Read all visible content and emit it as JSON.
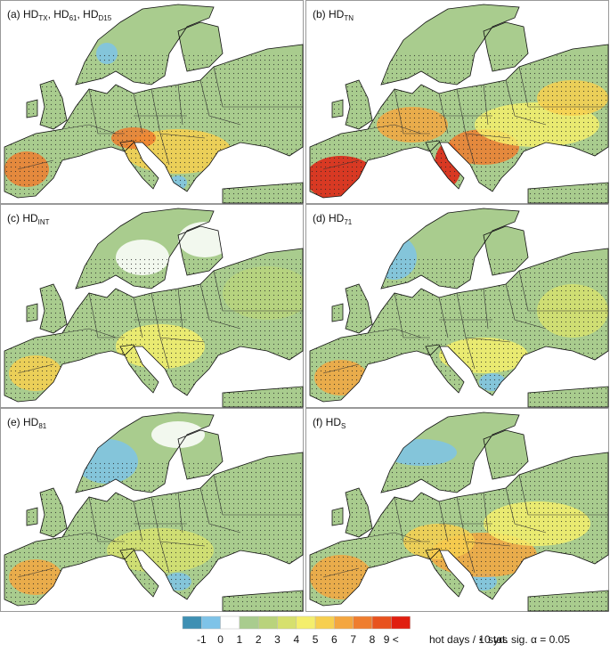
{
  "panels": [
    {
      "label": [
        {
          "text": "(a) HD"
        },
        {
          "sub": "TX"
        },
        {
          "text": ", HD"
        },
        {
          "sub": "61"
        },
        {
          "text": ", HD"
        },
        {
          "sub": "D15"
        }
      ]
    },
    {
      "label": [
        {
          "text": "(b) HD"
        },
        {
          "sub": "TN"
        }
      ]
    },
    {
      "label": [
        {
          "text": "(c) HD"
        },
        {
          "sub": "INT"
        }
      ]
    },
    {
      "label": [
        {
          "text": "(d) HD"
        },
        {
          "sub": "71"
        }
      ]
    },
    {
      "label": [
        {
          "text": "(e) HD"
        },
        {
          "sub": "81"
        }
      ]
    },
    {
      "label": [
        {
          "text": "(f) HD"
        },
        {
          "sub": "S"
        }
      ]
    }
  ],
  "legend": {
    "colors": [
      "#3f90b3",
      "#7ec3e8",
      "#ffffff",
      "#a9cc8e",
      "#b9d37c",
      "#d6e06e",
      "#f4ee6c",
      "#f7cf4f",
      "#f4a640",
      "#ef7d2f",
      "#e8521e",
      "#e01e10"
    ],
    "labels": [
      "-1",
      "0",
      "1",
      "2",
      "3",
      "4",
      "5",
      "6",
      "7",
      "8",
      "9 <"
    ],
    "unit": "hot days / 10 yrs",
    "significance": "stat. sig. α = 0.05"
  }
}
